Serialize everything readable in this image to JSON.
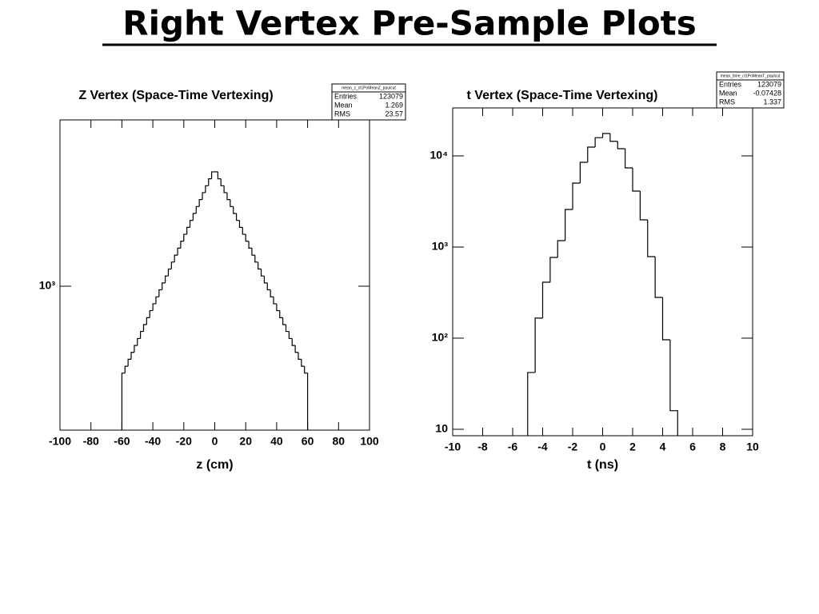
{
  "title": "Right Vertex Pre-Sample Plots",
  "chart_data": [
    {
      "type": "histogram",
      "title": "Z Vertex (Space-Time Vertexing)",
      "xlabel": "z (cm)",
      "bins": [
        -60,
        -58,
        -56,
        -54,
        -52,
        -50,
        -48,
        -46,
        -44,
        -42,
        -40,
        -38,
        -36,
        -34,
        -32,
        -30,
        -28,
        -26,
        -24,
        -22,
        -20,
        -18,
        -16,
        -14,
        -12,
        -10,
        -8,
        -6,
        -4,
        -2,
        0,
        2,
        4,
        6,
        8,
        10,
        12,
        14,
        16,
        18,
        20,
        22,
        24,
        26,
        28,
        30,
        32,
        34,
        36,
        38,
        40,
        42,
        44,
        46,
        48,
        50,
        52,
        54,
        56,
        58,
        60
      ],
      "values": [
        393,
        423,
        456,
        491,
        529,
        570,
        615,
        662,
        713,
        769,
        828,
        892,
        962,
        1036,
        1116,
        1203,
        1296,
        1396,
        1505,
        1621,
        1747,
        1882,
        2028,
        2185,
        2354,
        2537,
        2733,
        2944,
        3172,
        3418,
        3418,
        3172,
        2944,
        2733,
        2537,
        2354,
        2185,
        2028,
        1882,
        1747,
        1621,
        1505,
        1396,
        1296,
        1203,
        1116,
        1036,
        962,
        892,
        828,
        769,
        713,
        662,
        615,
        570,
        529,
        491,
        456,
        423,
        393
      ],
      "color": "#000000",
      "xlim": [
        -100,
        100
      ],
      "xticks": [
        -100,
        -80,
        -60,
        -40,
        -20,
        0,
        20,
        40,
        60,
        80,
        100
      ],
      "ylim": [
        213,
        5970
      ],
      "yticks": [
        {
          "value": 1000,
          "label": "10³"
        }
      ],
      "log_y": true,
      "stats": {
        "name": "mean_z_cl1PoMeanZ_paulcut",
        "rows": [
          [
            "Entries",
            123079
          ],
          [
            "Mean",
            1.269
          ],
          [
            "RMS",
            23.57
          ]
        ]
      }
    },
    {
      "type": "histogram",
      "title": "t Vertex (Space-Time Vertexing)",
      "xlabel": "t (ns)",
      "bins": [
        -5,
        -4.5,
        -4,
        -3.5,
        -3,
        -2.5,
        -2,
        -1.5,
        -1,
        -0.5,
        0,
        0.5,
        1,
        1.5,
        2,
        2.5,
        3,
        3.5,
        4,
        4.5,
        5
      ],
      "values": [
        42,
        166,
        411,
        769,
        1175,
        2583,
        5035,
        8511,
        12480,
        15850,
        17600,
        14450,
        12000,
        7380,
        4110,
        1986,
        785,
        280,
        96,
        16
      ],
      "color": "#000000",
      "xlim": [
        -10,
        10
      ],
      "xticks": [
        -10,
        -8,
        -6,
        -4,
        -2,
        0,
        2,
        4,
        6,
        8,
        10
      ],
      "ylim": [
        8.5,
        33600
      ],
      "yticks": [
        10,
        {
          "value": 100,
          "label": "10²"
        },
        {
          "value": 1000,
          "label": "10³"
        },
        {
          "value": 10000,
          "label": "10⁴"
        }
      ],
      "log_y": true,
      "stats": {
        "name": "mean_time_cl1PoMeanT_paulcut",
        "rows": [
          [
            "Entries",
            123079
          ],
          [
            "Mean",
            -0.07428
          ],
          [
            "RMS",
            1.337
          ]
        ]
      }
    }
  ]
}
